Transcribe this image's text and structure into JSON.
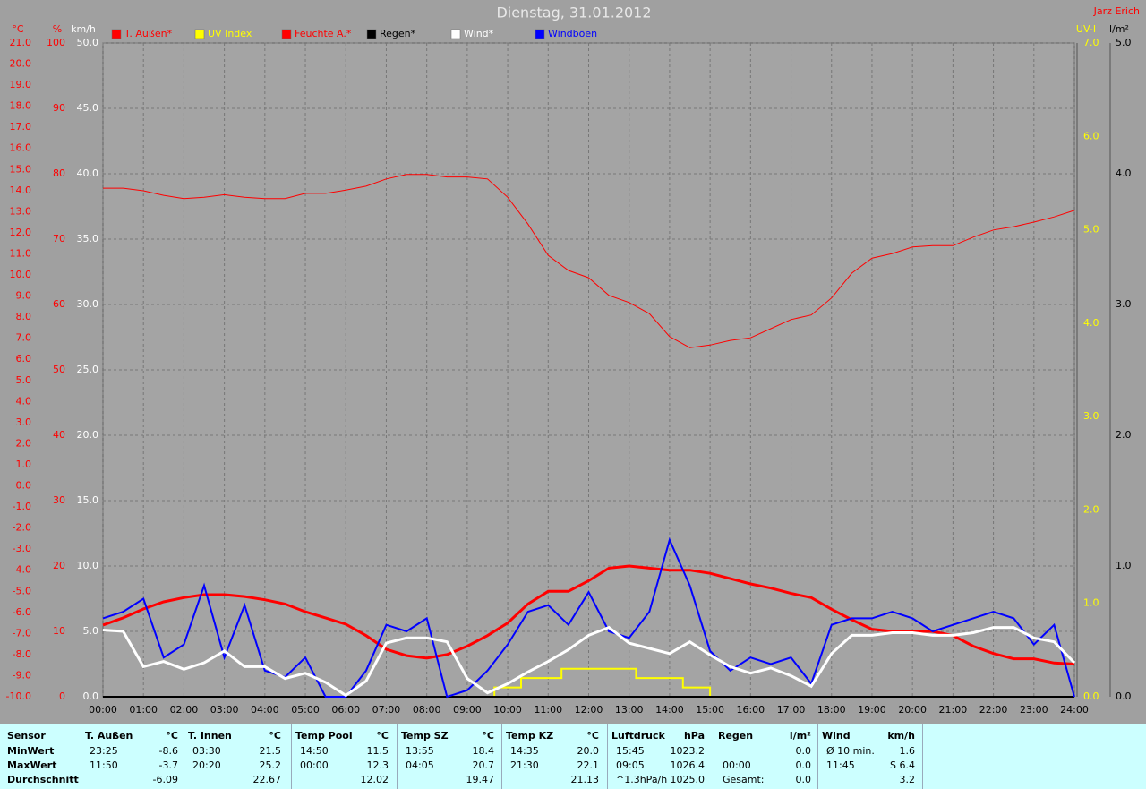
{
  "chart_data": {
    "type": "line",
    "title": "Dienstag, 31.01.2012",
    "author": "Jarz Erich",
    "grid": true,
    "x": [
      0,
      0.5,
      1,
      1.5,
      2,
      2.5,
      3,
      3.5,
      4,
      4.5,
      5,
      5.5,
      6,
      6.5,
      7,
      7.5,
      8,
      8.5,
      9,
      9.5,
      10,
      10.5,
      11,
      11.5,
      12,
      12.5,
      13,
      13.5,
      14,
      14.5,
      15,
      15.5,
      16,
      16.5,
      17,
      17.5,
      18,
      18.5,
      19,
      19.5,
      20,
      20.5,
      21,
      21.5,
      22,
      22.5,
      23,
      23.5,
      24
    ],
    "xlim": [
      0,
      24
    ],
    "xticks": [
      {
        "value": 0,
        "label": "00:00"
      },
      {
        "value": 1,
        "label": "01:00"
      },
      {
        "value": 2,
        "label": "02:00"
      },
      {
        "value": 3,
        "label": "03:00"
      },
      {
        "value": 4,
        "label": "04:00"
      },
      {
        "value": 5,
        "label": "05:00"
      },
      {
        "value": 6,
        "label": "06:00"
      },
      {
        "value": 7,
        "label": "07:00"
      },
      {
        "value": 8,
        "label": "08:00"
      },
      {
        "value": 9,
        "label": "09:00"
      },
      {
        "value": 10,
        "label": "10:00"
      },
      {
        "value": 11,
        "label": "11:00"
      },
      {
        "value": 12,
        "label": "12:00"
      },
      {
        "value": 13,
        "label": "13:00"
      },
      {
        "value": 14,
        "label": "14:00"
      },
      {
        "value": 15,
        "label": "15:00"
      },
      {
        "value": 16,
        "label": "16:00"
      },
      {
        "value": 17,
        "label": "17:00"
      },
      {
        "value": 18,
        "label": "18:00"
      },
      {
        "value": 19,
        "label": "19:00"
      },
      {
        "value": 20,
        "label": "20:00"
      },
      {
        "value": 21,
        "label": "21:00"
      },
      {
        "value": 22,
        "label": "22:00"
      },
      {
        "value": 23,
        "label": "23:00"
      },
      {
        "value": 24,
        "label": "24:00"
      }
    ],
    "axes": [
      {
        "unit": "°C",
        "color": "#ff0000",
        "lim": [
          -10,
          21
        ],
        "ticks": [
          {
            "value": 21,
            "label": "21.0"
          },
          {
            "value": 20,
            "label": "20.0"
          },
          {
            "value": 19,
            "label": "19.0"
          },
          {
            "value": 18,
            "label": "18.0"
          },
          {
            "value": 17,
            "label": "17.0"
          },
          {
            "value": 16,
            "label": "16.0"
          },
          {
            "value": 15,
            "label": "15.0"
          },
          {
            "value": 14,
            "label": "14.0"
          },
          {
            "value": 13,
            "label": "13.0"
          },
          {
            "value": 12,
            "label": "12.0"
          },
          {
            "value": 11,
            "label": "11.0"
          },
          {
            "value": 10,
            "label": "10.0"
          },
          {
            "value": 9,
            "label": "9.0"
          },
          {
            "value": 8,
            "label": "8.0"
          },
          {
            "value": 7,
            "label": "7.0"
          },
          {
            "value": 6,
            "label": "6.0"
          },
          {
            "value": 5,
            "label": "5.0"
          },
          {
            "value": 4,
            "label": "4.0"
          },
          {
            "value": 3,
            "label": "3.0"
          },
          {
            "value": 2,
            "label": "2.0"
          },
          {
            "value": 1,
            "label": "1.0"
          },
          {
            "value": 0,
            "label": "0.0"
          },
          {
            "value": -1,
            "label": "-1.0"
          },
          {
            "value": -2,
            "label": "-2.0"
          },
          {
            "value": -3,
            "label": "-3.0"
          },
          {
            "value": -4,
            "label": "-4.0"
          },
          {
            "value": -5,
            "label": "-5.0"
          },
          {
            "value": -6,
            "label": "-6.0"
          },
          {
            "value": -7,
            "label": "-7.0"
          },
          {
            "value": -8,
            "label": "-8.0"
          },
          {
            "value": -9,
            "label": "-9.0"
          },
          {
            "value": -10,
            "label": "-10.0"
          }
        ]
      },
      {
        "unit": "%",
        "color": "#ff0000",
        "lim": [
          0,
          100
        ],
        "ticks": [
          0,
          10,
          20,
          30,
          40,
          50,
          60,
          70,
          80,
          90,
          100
        ]
      },
      {
        "unit": "km/h",
        "color": "#ffffff",
        "lim": [
          0,
          50
        ],
        "ticks": [
          {
            "value": 0,
            "label": "0.0"
          },
          {
            "value": 5,
            "label": "5.0"
          },
          {
            "value": 10,
            "label": "10.0"
          },
          {
            "value": 15,
            "label": "15.0"
          },
          {
            "value": 20,
            "label": "20.0"
          },
          {
            "value": 25,
            "label": "25.0"
          },
          {
            "value": 30,
            "label": "30.0"
          },
          {
            "value": 35,
            "label": "35.0"
          },
          {
            "value": 40,
            "label": "40.0"
          },
          {
            "value": 45,
            "label": "45.0"
          },
          {
            "value": 50,
            "label": "50.0"
          }
        ]
      },
      {
        "unit": "UV-I",
        "color": "#ffff00",
        "lim": [
          0,
          7
        ],
        "ticks": [
          {
            "value": 0,
            "label": "0.0"
          },
          {
            "value": 1,
            "label": "1.0"
          },
          {
            "value": 2,
            "label": "2.0"
          },
          {
            "value": 3,
            "label": "3.0"
          },
          {
            "value": 4,
            "label": "4.0"
          },
          {
            "value": 5,
            "label": "5.0"
          },
          {
            "value": 6,
            "label": "6.0"
          },
          {
            "value": 7,
            "label": "7.0"
          }
        ]
      },
      {
        "unit": "l/m²",
        "color": "#000000",
        "lim": [
          0,
          5
        ],
        "ticks": [
          {
            "value": 0,
            "label": "0.0"
          },
          {
            "value": 1,
            "label": "1.0"
          },
          {
            "value": 2,
            "label": "2.0"
          },
          {
            "value": 3,
            "label": "3.0"
          },
          {
            "value": 4,
            "label": "4.0"
          },
          {
            "value": 5,
            "label": "5.0"
          }
        ]
      }
    ],
    "series": [
      {
        "name": "T. Außen*",
        "color": "#ff0000",
        "axis": 0,
        "width": 3,
        "values": [
          -6.6,
          -6.26,
          -5.84,
          -5.5,
          -5.3,
          -5.16,
          -5.16,
          -5.25,
          -5.4,
          -5.6,
          -5.97,
          -6.26,
          -6.56,
          -7.1,
          -7.75,
          -8.05,
          -8.17,
          -8.0,
          -7.6,
          -7.1,
          -6.5,
          -5.6,
          -5.0,
          -5.0,
          -4.5,
          -3.9,
          -3.8,
          -3.9,
          -4.0,
          -4.0,
          -4.15,
          -4.4,
          -4.65,
          -4.85,
          -5.1,
          -5.3,
          -5.85,
          -6.35,
          -6.8,
          -6.9,
          -6.9,
          -6.9,
          -7.1,
          -7.6,
          -7.95,
          -8.2,
          -8.2,
          -8.4,
          -8.45
        ]
      },
      {
        "name": "UV Index",
        "color": "#ffff00",
        "axis": 3,
        "width": 2,
        "x": [
          0,
          9.67,
          9.67,
          10.33,
          10.33,
          11.33,
          11.33,
          13.17,
          13.17,
          14.33,
          14.33,
          15,
          15,
          24
        ],
        "values": [
          0,
          0,
          0.1,
          0.1,
          0.2,
          0.2,
          0.3,
          0.3,
          0.2,
          0.2,
          0.1,
          0.1,
          0,
          0
        ]
      },
      {
        "name": "Feuchte A.*",
        "color": "#ff0000",
        "axis": 1,
        "width": 1,
        "values": [
          77.8,
          77.8,
          77.4,
          76.7,
          76.2,
          76.4,
          76.8,
          76.4,
          76.2,
          76.2,
          77.0,
          77.0,
          77.5,
          78.1,
          79.2,
          79.9,
          79.9,
          79.5,
          79.5,
          79.2,
          76.4,
          72.3,
          67.5,
          65.2,
          64.1,
          61.4,
          60.3,
          58.6,
          55.1,
          53.4,
          53.8,
          54.5,
          54.9,
          56.3,
          57.7,
          58.4,
          61.0,
          64.8,
          67.1,
          67.8,
          68.8,
          69.0,
          69.0,
          70.3,
          71.4,
          71.9,
          72.6,
          73.4,
          74.4
        ]
      },
      {
        "name": "Regen*",
        "color": "#000000",
        "axis": 4,
        "width": 2,
        "x": [
          0,
          24
        ],
        "values": [
          0,
          0
        ]
      },
      {
        "name": "Windböen",
        "color": "#0000ff",
        "axis": 2,
        "width": 2,
        "values": [
          6.0,
          6.5,
          7.5,
          3.0,
          4.0,
          8.5,
          3.0,
          7.0,
          2.0,
          1.5,
          3.0,
          0.0,
          0.0,
          2.0,
          5.5,
          5.0,
          6.0,
          0.0,
          0.5,
          2.0,
          4.0,
          6.5,
          7.0,
          5.5,
          8.0,
          5.0,
          4.5,
          6.5,
          12.0,
          8.5,
          3.5,
          2.0,
          3.0,
          2.5,
          3.0,
          1.0,
          5.5,
          6.0,
          6.0,
          6.5,
          6.0,
          5.0,
          5.5,
          6.0,
          6.5,
          6.0,
          4.0,
          5.5,
          0.0
        ]
      },
      {
        "name": "Wind*",
        "color": "#ffffff",
        "axis": 2,
        "width": 3,
        "values": [
          5.1,
          5.0,
          2.3,
          2.7,
          2.1,
          2.6,
          3.5,
          2.3,
          2.3,
          1.4,
          1.8,
          1.1,
          0.1,
          1.2,
          4.1,
          4.5,
          4.5,
          4.2,
          1.4,
          0.3,
          1.0,
          1.9,
          2.7,
          3.6,
          4.7,
          5.3,
          4.1,
          3.7,
          3.3,
          4.2,
          3.2,
          2.3,
          1.8,
          2.2,
          1.6,
          0.8,
          3.3,
          4.7,
          4.7,
          4.9,
          4.9,
          4.7,
          4.7,
          4.9,
          5.3,
          5.3,
          4.5,
          4.2,
          2.6
        ]
      }
    ],
    "legend_order": [
      0,
      1,
      2,
      3,
      5,
      4
    ]
  },
  "table": {
    "header": "Sensor",
    "row_labels": [
      "MinWert",
      "MaxWert",
      "Durchschnitt"
    ],
    "columns": [
      {
        "header": "T. Außen",
        "unit": "°C",
        "rows": [
          [
            "23:25",
            "-8.6"
          ],
          [
            "11:50",
            "-3.7"
          ],
          [
            "-6.09"
          ]
        ]
      },
      {
        "header": "T. Innen",
        "unit": "°C",
        "rows": [
          [
            "03:30",
            "21.5"
          ],
          [
            "20:20",
            "25.2"
          ],
          [
            "22.67"
          ]
        ]
      },
      {
        "header": "Temp Pool",
        "unit": "°C",
        "rows": [
          [
            "14:50",
            "11.5"
          ],
          [
            "00:00",
            "12.3"
          ],
          [
            "12.02"
          ]
        ]
      },
      {
        "header": "Temp SZ",
        "unit": "°C",
        "rows": [
          [
            "13:55",
            "18.4"
          ],
          [
            "04:05",
            "20.7"
          ],
          [
            "19.47"
          ]
        ]
      },
      {
        "header": "Temp KZ",
        "unit": "°C",
        "rows": [
          [
            "14:35",
            "20.0"
          ],
          [
            "21:30",
            "22.1"
          ],
          [
            "21.13"
          ]
        ]
      },
      {
        "header": "Luftdruck",
        "unit": "hPa",
        "rows": [
          [
            "15:45",
            "1023.2"
          ],
          [
            "09:05",
            "1026.4"
          ],
          [
            "^1.3hPa/h",
            "1025.0"
          ]
        ]
      },
      {
        "header": "Regen",
        "unit": "l/m²",
        "rows": [
          [
            "0.0"
          ],
          [
            "00:00",
            "0.0"
          ],
          [
            "Gesamt:",
            "0.0"
          ]
        ]
      },
      {
        "header": "Wind",
        "unit": "km/h",
        "rows": [
          [
            "Ø 10 min.",
            "1.6"
          ],
          [
            "11:45",
            "S 6.4"
          ],
          [
            "3.2"
          ]
        ]
      }
    ]
  }
}
